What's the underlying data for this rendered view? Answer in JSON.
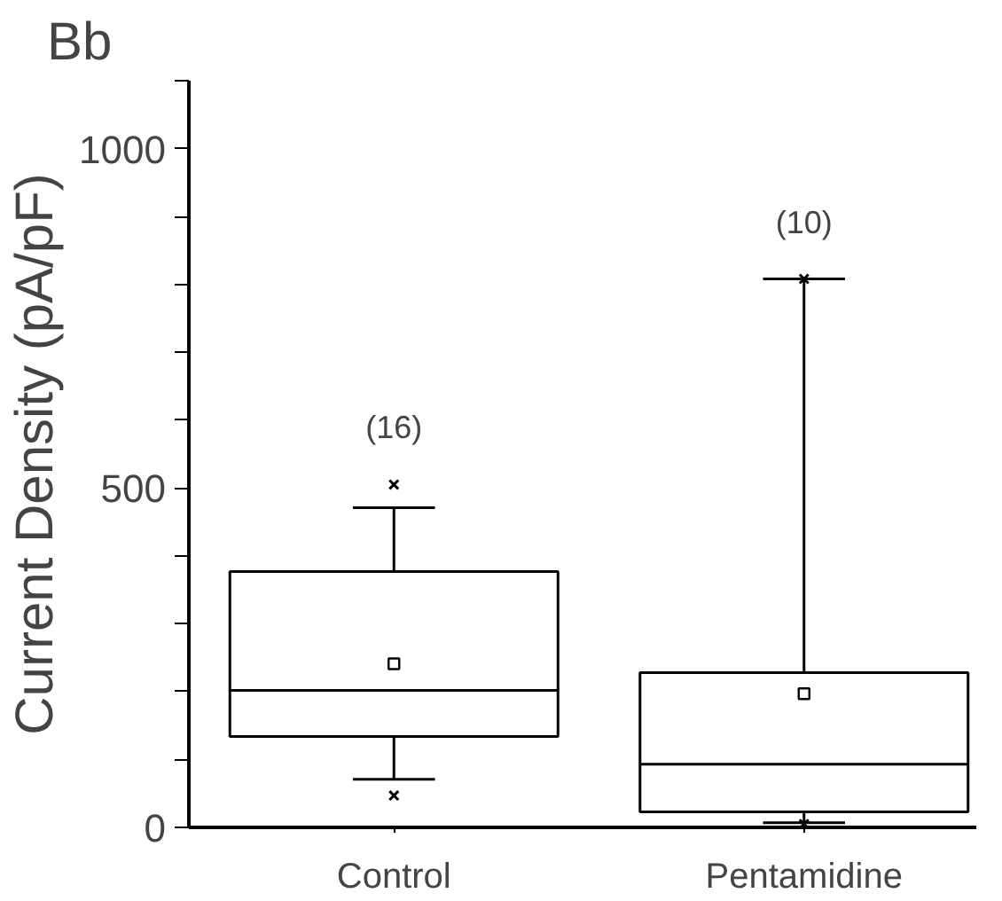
{
  "chart_data": {
    "type": "box",
    "title": "Bb",
    "ylabel": "Current Density (pA/pF)",
    "categories": [
      "Control",
      "Pentamidine"
    ],
    "boxes": [
      {
        "low": 71,
        "q1": 134,
        "median": 202,
        "q3": 377,
        "high": 471,
        "mean": 241,
        "outliers": [
          505,
          47
        ]
      },
      {
        "low": 7,
        "q1": 23,
        "median": 93,
        "q3": 228,
        "high": 808,
        "mean": 197,
        "outliers": [
          808,
          5
        ]
      }
    ],
    "annotations": [
      "(16)",
      "(10)"
    ],
    "ylim": [
      0,
      1100
    ],
    "yticks": [
      0,
      {
        "value": 100,
        "label": null
      },
      {
        "value": 200,
        "label": null
      },
      {
        "value": 300,
        "label": null
      },
      {
        "value": 400,
        "label": null
      },
      500,
      {
        "value": 600,
        "label": null
      },
      {
        "value": 700,
        "label": null
      },
      {
        "value": 800,
        "label": null
      },
      {
        "value": 900,
        "label": null
      },
      1000,
      {
        "value": 1100,
        "label": null
      }
    ],
    "grid": false
  }
}
